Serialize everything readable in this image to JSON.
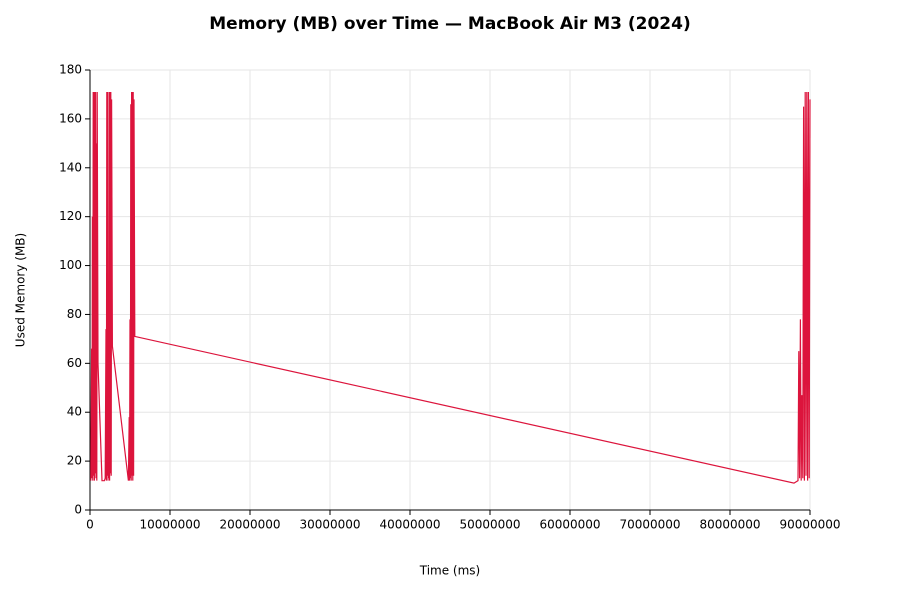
{
  "chart_data": {
    "type": "line",
    "title": "Memory (MB) over Time — MacBook Air M3 (2024)",
    "x_label": "Time (ms)",
    "y_label": "Used Memory (MB)",
    "color": "#dc143c",
    "grid": true,
    "x": [
      100000,
      200000,
      250000,
      300000,
      350000,
      400000,
      450000,
      500000,
      550000,
      600000,
      650000,
      700000,
      750000,
      800000,
      850000,
      900000,
      1000000,
      1500000,
      1700000,
      1800000,
      1900000,
      2000000,
      2050000,
      2100000,
      2150000,
      2200000,
      2250000,
      2300000,
      2350000,
      2400000,
      2450000,
      2500000,
      2550000,
      2600000,
      2650000,
      2700000,
      2800000,
      4800000,
      4900000,
      4950000,
      5000000,
      5050000,
      5100000,
      5150000,
      5200000,
      5250000,
      5300000,
      5350000,
      5400000,
      5450000,
      5500000,
      5600000,
      88000000,
      88500000,
      88600000,
      88700000,
      88800000,
      88900000,
      89000000,
      89100000,
      89200000,
      89300000,
      89400000,
      89500000,
      89600000,
      89700000,
      89800000,
      89900000,
      90000000
    ],
    "values": [
      12,
      66,
      13,
      120,
      12,
      171,
      14,
      171,
      12,
      171,
      15,
      171,
      13,
      150,
      12,
      171,
      60,
      12,
      12,
      12,
      13,
      74,
      12,
      171,
      14,
      171,
      12,
      80,
      13,
      171,
      12,
      171,
      15,
      171,
      14,
      168,
      67,
      12,
      38,
      12,
      78,
      13,
      166,
      12,
      171,
      14,
      171,
      12,
      171,
      14,
      168,
      71,
      11,
      12,
      65,
      13,
      78,
      12,
      47,
      13,
      165,
      12,
      171,
      14,
      171,
      12,
      171,
      13,
      168
    ],
    "xlim": [
      0,
      90000000
    ],
    "xticks": [
      0,
      10000000,
      20000000,
      30000000,
      40000000,
      50000000,
      60000000,
      70000000,
      80000000,
      90000000
    ],
    "ylim": [
      0,
      180
    ],
    "yticks": [
      0,
      20,
      40,
      60,
      80,
      100,
      120,
      140,
      160,
      180
    ]
  }
}
